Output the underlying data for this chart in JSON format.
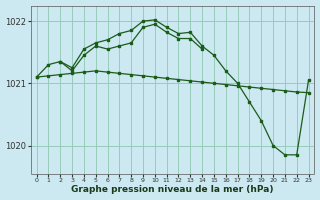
{
  "background_color": "#cce8f0",
  "grid_color": "#99ccbb",
  "line_color": "#1a5c1a",
  "marker_color": "#1a5c1a",
  "title": "Graphe pression niveau de la mer (hPa)",
  "xlim": [
    -0.5,
    23.5
  ],
  "ylim": [
    1019.55,
    1022.25
  ],
  "yticks": [
    1020,
    1021,
    1022
  ],
  "xticks": [
    0,
    1,
    2,
    3,
    4,
    5,
    6,
    7,
    8,
    9,
    10,
    11,
    12,
    13,
    14,
    15,
    16,
    17,
    18,
    19,
    20,
    21,
    22,
    23
  ],
  "series_straight_x": [
    0,
    1,
    2,
    3,
    4,
    5,
    6,
    7,
    8,
    9,
    10,
    11,
    12,
    13,
    14,
    15,
    16,
    17,
    18,
    19,
    20,
    21,
    22,
    23
  ],
  "series_straight_y": [
    1021.1,
    1021.12,
    1021.14,
    1021.16,
    1021.18,
    1021.2,
    1021.18,
    1021.16,
    1021.14,
    1021.12,
    1021.1,
    1021.08,
    1021.06,
    1021.04,
    1021.02,
    1021.0,
    1020.98,
    1020.96,
    1020.94,
    1020.92,
    1020.9,
    1020.88,
    1020.86,
    1020.85
  ],
  "series_main_x": [
    0,
    1,
    2,
    3,
    4,
    5,
    6,
    7,
    8,
    9,
    10,
    11,
    12,
    13,
    14,
    15,
    16,
    17,
    18,
    19,
    20,
    21,
    22,
    23
  ],
  "series_main_y": [
    1021.1,
    1021.3,
    1021.35,
    1021.25,
    1021.55,
    1021.65,
    1021.7,
    1021.8,
    1021.85,
    1022.0,
    1022.02,
    1021.9,
    1021.8,
    1021.82,
    1021.6,
    1021.45,
    1021.2,
    1021.0,
    1020.7,
    1020.4,
    1020.0,
    1019.85,
    1019.85,
    1021.05
  ],
  "series_short_x": [
    2,
    3,
    4,
    5,
    6,
    7,
    8,
    9,
    10,
    11,
    12,
    13,
    14
  ],
  "series_short_y": [
    1021.35,
    1021.2,
    1021.45,
    1021.6,
    1021.55,
    1021.6,
    1021.65,
    1021.9,
    1021.95,
    1021.82,
    1021.72,
    1021.72,
    1021.55
  ]
}
